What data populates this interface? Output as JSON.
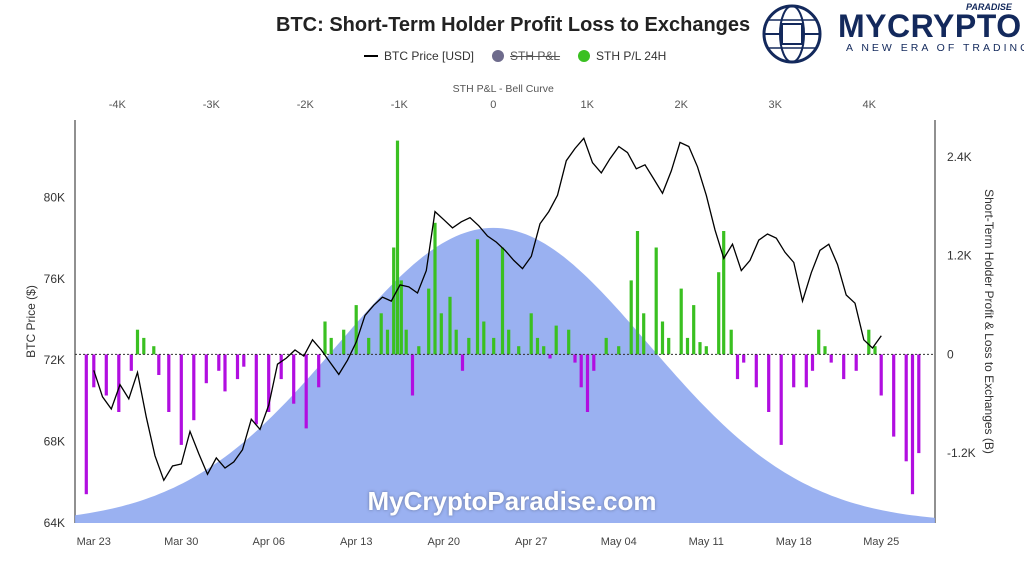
{
  "title": "BTC: Short-Term Holder Profit Loss to Exchanges",
  "legend": [
    {
      "label": "BTC Price [USD]",
      "marker": "line",
      "color": "#000000",
      "strike": false
    },
    {
      "label": "STH P&L",
      "marker": "dot",
      "color": "#6e6b8c",
      "strike": true
    },
    {
      "label": "STH P/L 24H",
      "marker": "dot",
      "color": "#3ac021",
      "strike": false
    }
  ],
  "brand": {
    "name": "MYCRYPTO",
    "top": "PARADISE",
    "tagline": "A NEW ERA OF TRADING",
    "logo_icon": "globe-chip-icon",
    "color": "#13295c"
  },
  "watermark": "MyCryptoParadise.com",
  "chart_data": {
    "type": "area",
    "top_axis": {
      "label": "STH P&L - Bell Curve",
      "ticks": [
        "-4K",
        "-3K",
        "-2K",
        "-1K",
        "0",
        "1K",
        "2K",
        "3K",
        "4K"
      ],
      "tick_values": [
        -4000,
        -3000,
        -2000,
        -1000,
        0,
        1000,
        2000,
        3000,
        4000
      ],
      "range": [
        -4450,
        4700
      ]
    },
    "x_ticks": [
      "Mar 23",
      "Mar 30",
      "Apr 06",
      "Apr 13",
      "Apr 20",
      "Apr 27",
      "May 04",
      "May 11",
      "May 18",
      "May 25"
    ],
    "x_range_days": [
      -1.5,
      67.3
    ],
    "y_left": {
      "label": "BTC Price ($)",
      "ticks": [
        "64K",
        "68K",
        "72K",
        "76K",
        "80K"
      ],
      "tick_values": [
        64000,
        68000,
        72000,
        76000,
        80000
      ],
      "range": [
        64000,
        83800
      ]
    },
    "y_right": {
      "label": "Short-Term Holder Profit & Loss to Exchanges (B)",
      "ticks": [
        "2.4K",
        "1.2K",
        "0",
        "-1.2K"
      ],
      "tick_values": [
        2400,
        1200,
        0,
        -1200
      ],
      "range": [
        -2050,
        2850
      ]
    },
    "bell_curve": {
      "color": "#8fa8f0",
      "mean": 0,
      "std": 1650,
      "peak_price": 78500
    },
    "colors": {
      "profit": "#3ac021",
      "loss": "#b10ee0",
      "price": "#000000"
    },
    "price_series": [
      {
        "day": 0,
        "price": 71500
      },
      {
        "day": 1,
        "price": 70200
      },
      {
        "day": 2,
        "price": 69600
      },
      {
        "day": 3,
        "price": 70800
      },
      {
        "day": 4,
        "price": 70100
      },
      {
        "day": 5,
        "price": 71400
      },
      {
        "day": 6,
        "price": 69200
      },
      {
        "day": 7,
        "price": 67300
      },
      {
        "day": 8,
        "price": 66100
      },
      {
        "day": 9,
        "price": 66800
      },
      {
        "day": 10,
        "price": 66900
      },
      {
        "day": 11,
        "price": 68500
      },
      {
        "day": 12,
        "price": 67400
      },
      {
        "day": 13,
        "price": 66400
      },
      {
        "day": 14,
        "price": 67200
      },
      {
        "day": 15,
        "price": 66700
      },
      {
        "day": 16,
        "price": 67000
      },
      {
        "day": 17,
        "price": 67600
      },
      {
        "day": 18,
        "price": 69100
      },
      {
        "day": 19,
        "price": 68600
      },
      {
        "day": 20,
        "price": 69800
      },
      {
        "day": 21,
        "price": 71800
      },
      {
        "day": 22,
        "price": 72100
      },
      {
        "day": 23,
        "price": 72500
      },
      {
        "day": 24,
        "price": 72200
      },
      {
        "day": 25,
        "price": 73000
      },
      {
        "day": 26,
        "price": 72500
      },
      {
        "day": 27,
        "price": 71900
      },
      {
        "day": 28,
        "price": 71300
      },
      {
        "day": 29,
        "price": 72000
      },
      {
        "day": 30,
        "price": 72900
      },
      {
        "day": 31,
        "price": 74200
      },
      {
        "day": 32,
        "price": 74700
      },
      {
        "day": 33,
        "price": 75100
      },
      {
        "day": 34,
        "price": 74900
      },
      {
        "day": 35,
        "price": 75700
      },
      {
        "day": 36,
        "price": 75600
      },
      {
        "day": 37,
        "price": 75300
      },
      {
        "day": 38,
        "price": 76400
      },
      {
        "day": 39,
        "price": 79300
      },
      {
        "day": 40,
        "price": 78900
      },
      {
        "day": 41,
        "price": 78500
      },
      {
        "day": 42,
        "price": 78800
      },
      {
        "day": 43,
        "price": 79000
      },
      {
        "day": 44,
        "price": 78600
      },
      {
        "day": 45,
        "price": 78100
      },
      {
        "day": 46,
        "price": 77800
      },
      {
        "day": 47,
        "price": 77400
      },
      {
        "day": 48,
        "price": 76900
      },
      {
        "day": 49,
        "price": 76500
      },
      {
        "day": 50,
        "price": 77100
      },
      {
        "day": 51,
        "price": 78700
      },
      {
        "day": 52,
        "price": 79300
      },
      {
        "day": 53,
        "price": 80100
      },
      {
        "day": 54,
        "price": 81800
      },
      {
        "day": 55,
        "price": 82400
      },
      {
        "day": 56,
        "price": 82900
      },
      {
        "day": 57,
        "price": 81700
      },
      {
        "day": 58,
        "price": 81200
      },
      {
        "day": 59,
        "price": 81900
      },
      {
        "day": 60,
        "price": 82500
      },
      {
        "day": 61,
        "price": 82200
      },
      {
        "day": 62,
        "price": 81400
      },
      {
        "day": 63,
        "price": 81600
      },
      {
        "day": 64,
        "price": 80900
      },
      {
        "day": 65,
        "price": 80200
      },
      {
        "day": 66,
        "price": 81300
      },
      {
        "day": 67,
        "price": 82700
      },
      {
        "day": 68,
        "price": 82500
      },
      {
        "day": 69,
        "price": 81500
      },
      {
        "day": 70,
        "price": 80100
      },
      {
        "day": 71,
        "price": 78400
      },
      {
        "day": 72,
        "price": 77000
      },
      {
        "day": 73,
        "price": 77700
      },
      {
        "day": 74,
        "price": 76400
      },
      {
        "day": 75,
        "price": 76900
      },
      {
        "day": 76,
        "price": 77900
      },
      {
        "day": 77,
        "price": 78200
      },
      {
        "day": 78,
        "price": 78000
      },
      {
        "day": 79,
        "price": 77300
      },
      {
        "day": 80,
        "price": 76800
      },
      {
        "day": 81,
        "price": 74900
      },
      {
        "day": 82,
        "price": 76300
      },
      {
        "day": 83,
        "price": 77400
      },
      {
        "day": 84,
        "price": 77700
      },
      {
        "day": 85,
        "price": 76700
      },
      {
        "day": 86,
        "price": 75200
      },
      {
        "day": 87,
        "price": 74800
      },
      {
        "day": 88,
        "price": 73000
      },
      {
        "day": 89,
        "price": 72600
      },
      {
        "day": 90,
        "price": 73200
      }
    ],
    "price_day_scale": 0.7,
    "pnl_series": [
      {
        "day": -0.6,
        "value": -1700
      },
      {
        "day": 0,
        "value": -400
      },
      {
        "day": 1,
        "value": -500
      },
      {
        "day": 2,
        "value": -700
      },
      {
        "day": 3,
        "value": -200
      },
      {
        "day": 3.5,
        "value": 300
      },
      {
        "day": 4,
        "value": 200
      },
      {
        "day": 4.8,
        "value": 100
      },
      {
        "day": 5.2,
        "value": -250
      },
      {
        "day": 6,
        "value": -700
      },
      {
        "day": 7,
        "value": -1100
      },
      {
        "day": 8,
        "value": -800
      },
      {
        "day": 9,
        "value": -350
      },
      {
        "day": 10,
        "value": -200
      },
      {
        "day": 10.5,
        "value": -450
      },
      {
        "day": 11.5,
        "value": -300
      },
      {
        "day": 12,
        "value": -150
      },
      {
        "day": 13,
        "value": -850
      },
      {
        "day": 14,
        "value": -700
      },
      {
        "day": 15,
        "value": -300
      },
      {
        "day": 16,
        "value": -600
      },
      {
        "day": 17,
        "value": -900
      },
      {
        "day": 18,
        "value": -400
      },
      {
        "day": 18.5,
        "value": 400
      },
      {
        "day": 19,
        "value": 200
      },
      {
        "day": 20,
        "value": 300
      },
      {
        "day": 21,
        "value": 600
      },
      {
        "day": 22,
        "value": 200
      },
      {
        "day": 23,
        "value": 500
      },
      {
        "day": 23.5,
        "value": 300
      },
      {
        "day": 24,
        "value": 1300
      },
      {
        "day": 24.3,
        "value": 2600
      },
      {
        "day": 24.6,
        "value": 900
      },
      {
        "day": 25,
        "value": 300
      },
      {
        "day": 25.5,
        "value": -500
      },
      {
        "day": 26,
        "value": 100
      },
      {
        "day": 26.8,
        "value": 800
      },
      {
        "day": 27.3,
        "value": 1600
      },
      {
        "day": 27.8,
        "value": 500
      },
      {
        "day": 28.5,
        "value": 700
      },
      {
        "day": 29,
        "value": 300
      },
      {
        "day": 29.5,
        "value": -200
      },
      {
        "day": 30,
        "value": 200
      },
      {
        "day": 30.7,
        "value": 1400
      },
      {
        "day": 31.2,
        "value": 400
      },
      {
        "day": 32,
        "value": 200
      },
      {
        "day": 32.7,
        "value": 1300
      },
      {
        "day": 33.2,
        "value": 300
      },
      {
        "day": 34,
        "value": 100
      },
      {
        "day": 35,
        "value": 500
      },
      {
        "day": 35.5,
        "value": 200
      },
      {
        "day": 36,
        "value": 100
      },
      {
        "day": 36.5,
        "value": -50
      },
      {
        "day": 37,
        "value": 350
      },
      {
        "day": 38,
        "value": 300
      },
      {
        "day": 38.5,
        "value": -100
      },
      {
        "day": 39,
        "value": -400
      },
      {
        "day": 39.5,
        "value": -700
      },
      {
        "day": 40,
        "value": -200
      },
      {
        "day": 41,
        "value": 200
      },
      {
        "day": 42,
        "value": 100
      },
      {
        "day": 43,
        "value": 900
      },
      {
        "day": 43.5,
        "value": 1500
      },
      {
        "day": 44,
        "value": 500
      },
      {
        "day": 45,
        "value": 1300
      },
      {
        "day": 45.5,
        "value": 400
      },
      {
        "day": 46,
        "value": 200
      },
      {
        "day": 47,
        "value": 800
      },
      {
        "day": 47.5,
        "value": 200
      },
      {
        "day": 48,
        "value": 600
      },
      {
        "day": 48.5,
        "value": 150
      },
      {
        "day": 49,
        "value": 100
      },
      {
        "day": 50,
        "value": 1000
      },
      {
        "day": 50.4,
        "value": 1500
      },
      {
        "day": 51,
        "value": 300
      },
      {
        "day": 51.5,
        "value": -300
      },
      {
        "day": 52,
        "value": -100
      },
      {
        "day": 53,
        "value": -400
      },
      {
        "day": 54,
        "value": -700
      },
      {
        "day": 55,
        "value": -1100
      },
      {
        "day": 56,
        "value": -400
      },
      {
        "day": 57,
        "value": -400
      },
      {
        "day": 57.5,
        "value": -200
      },
      {
        "day": 58,
        "value": 300
      },
      {
        "day": 58.5,
        "value": 100
      },
      {
        "day": 59,
        "value": -100
      },
      {
        "day": 60,
        "value": -300
      },
      {
        "day": 61,
        "value": -200
      },
      {
        "day": 62,
        "value": 300
      },
      {
        "day": 62.5,
        "value": 100
      },
      {
        "day": 63,
        "value": -500
      },
      {
        "day": 64,
        "value": -1000
      },
      {
        "day": 65,
        "value": -1300
      },
      {
        "day": 65.5,
        "value": -1700
      },
      {
        "day": 66,
        "value": -1200
      }
    ]
  }
}
